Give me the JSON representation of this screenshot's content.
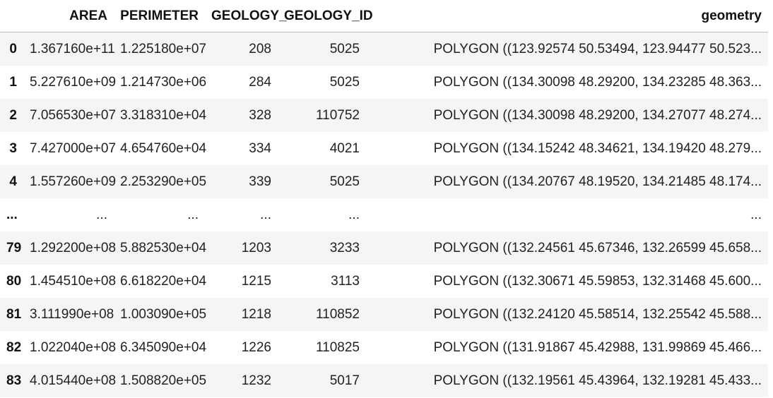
{
  "columns": {
    "index": "",
    "area": "AREA",
    "perimeter": "PERIMETER",
    "geology": "GEOLOGY_",
    "geology_id": "GEOLOGY_ID",
    "geometry": "geometry"
  },
  "rows": [
    {
      "index": "0",
      "area": "1.367160e+11",
      "perimeter": "1.225180e+07",
      "geology": "208",
      "geology_id": "5025",
      "geometry": "POLYGON ((123.92574 50.53494, 123.94477 50.523..."
    },
    {
      "index": "1",
      "area": "5.227610e+09",
      "perimeter": "1.214730e+06",
      "geology": "284",
      "geology_id": "5025",
      "geometry": "POLYGON ((134.30098 48.29200, 134.23285 48.363..."
    },
    {
      "index": "2",
      "area": "7.056530e+07",
      "perimeter": "3.318310e+04",
      "geology": "328",
      "geology_id": "110752",
      "geometry": "POLYGON ((134.30098 48.29200, 134.27077 48.274..."
    },
    {
      "index": "3",
      "area": "7.427000e+07",
      "perimeter": "4.654760e+04",
      "geology": "334",
      "geology_id": "4021",
      "geometry": "POLYGON ((134.15242 48.34621, 134.19420 48.279..."
    },
    {
      "index": "4",
      "area": "1.557260e+09",
      "perimeter": "2.253290e+05",
      "geology": "339",
      "geology_id": "5025",
      "geometry": "POLYGON ((134.20767 48.19520, 134.21485 48.174..."
    },
    {
      "index": "...",
      "area": "...",
      "perimeter": "...",
      "geology": "...",
      "geology_id": "...",
      "geometry": "..."
    },
    {
      "index": "79",
      "area": "1.292200e+08",
      "perimeter": "5.882530e+04",
      "geology": "1203",
      "geology_id": "3233",
      "geometry": "POLYGON ((132.24561 45.67346, 132.26599 45.658..."
    },
    {
      "index": "80",
      "area": "1.454510e+08",
      "perimeter": "6.618220e+04",
      "geology": "1215",
      "geology_id": "3113",
      "geometry": "POLYGON ((132.30671 45.59853, 132.31468 45.600..."
    },
    {
      "index": "81",
      "area": "3.111990e+08",
      "perimeter": "1.003090e+05",
      "geology": "1218",
      "geology_id": "110852",
      "geometry": "POLYGON ((132.24120 45.58514, 132.25542 45.588..."
    },
    {
      "index": "82",
      "area": "1.022040e+08",
      "perimeter": "6.345090e+04",
      "geology": "1226",
      "geology_id": "110825",
      "geometry": "POLYGON ((131.91867 45.42988, 131.99869 45.466..."
    },
    {
      "index": "83",
      "area": "4.015440e+08",
      "perimeter": "1.508820e+05",
      "geology": "1232",
      "geology_id": "5017",
      "geometry": "POLYGON ((132.19561 45.43964, 132.19281 45.433..."
    }
  ]
}
